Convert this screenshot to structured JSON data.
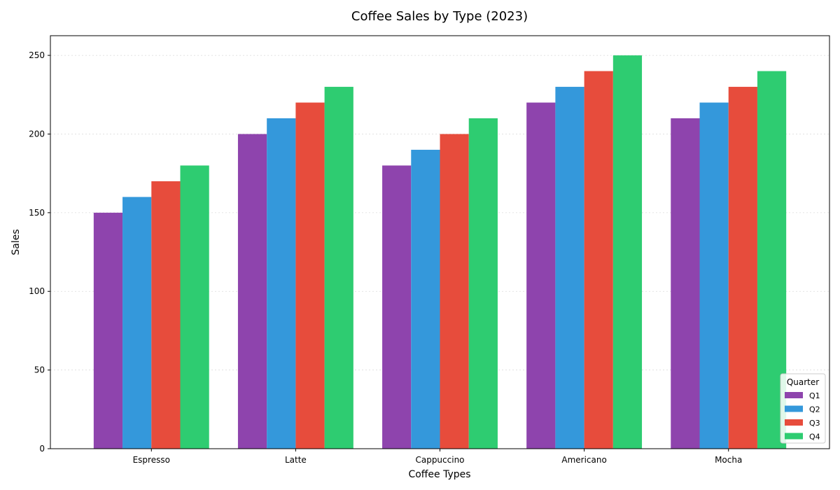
{
  "chart_data": {
    "type": "bar",
    "title": "Coffee Sales by Type (2023)",
    "xlabel": "Coffee Types",
    "ylabel": "Sales",
    "categories": [
      "Espresso",
      "Latte",
      "Cappuccino",
      "Americano",
      "Mocha"
    ],
    "series": [
      {
        "name": "Q1",
        "color": "#8e44ad",
        "values": [
          150,
          200,
          180,
          220,
          210
        ]
      },
      {
        "name": "Q2",
        "color": "#3498db",
        "values": [
          160,
          210,
          190,
          230,
          220
        ]
      },
      {
        "name": "Q3",
        "color": "#e74c3c",
        "values": [
          170,
          220,
          200,
          240,
          230
        ]
      },
      {
        "name": "Q4",
        "color": "#2ecc71",
        "values": [
          180,
          230,
          210,
          250,
          240
        ]
      }
    ],
    "ylim": [
      0,
      262.5
    ],
    "yticks": [
      0,
      50,
      100,
      150,
      200,
      250
    ],
    "grid": "horizontal-dotted",
    "legend": {
      "title": "Quarter",
      "placement": "lower-right"
    }
  }
}
